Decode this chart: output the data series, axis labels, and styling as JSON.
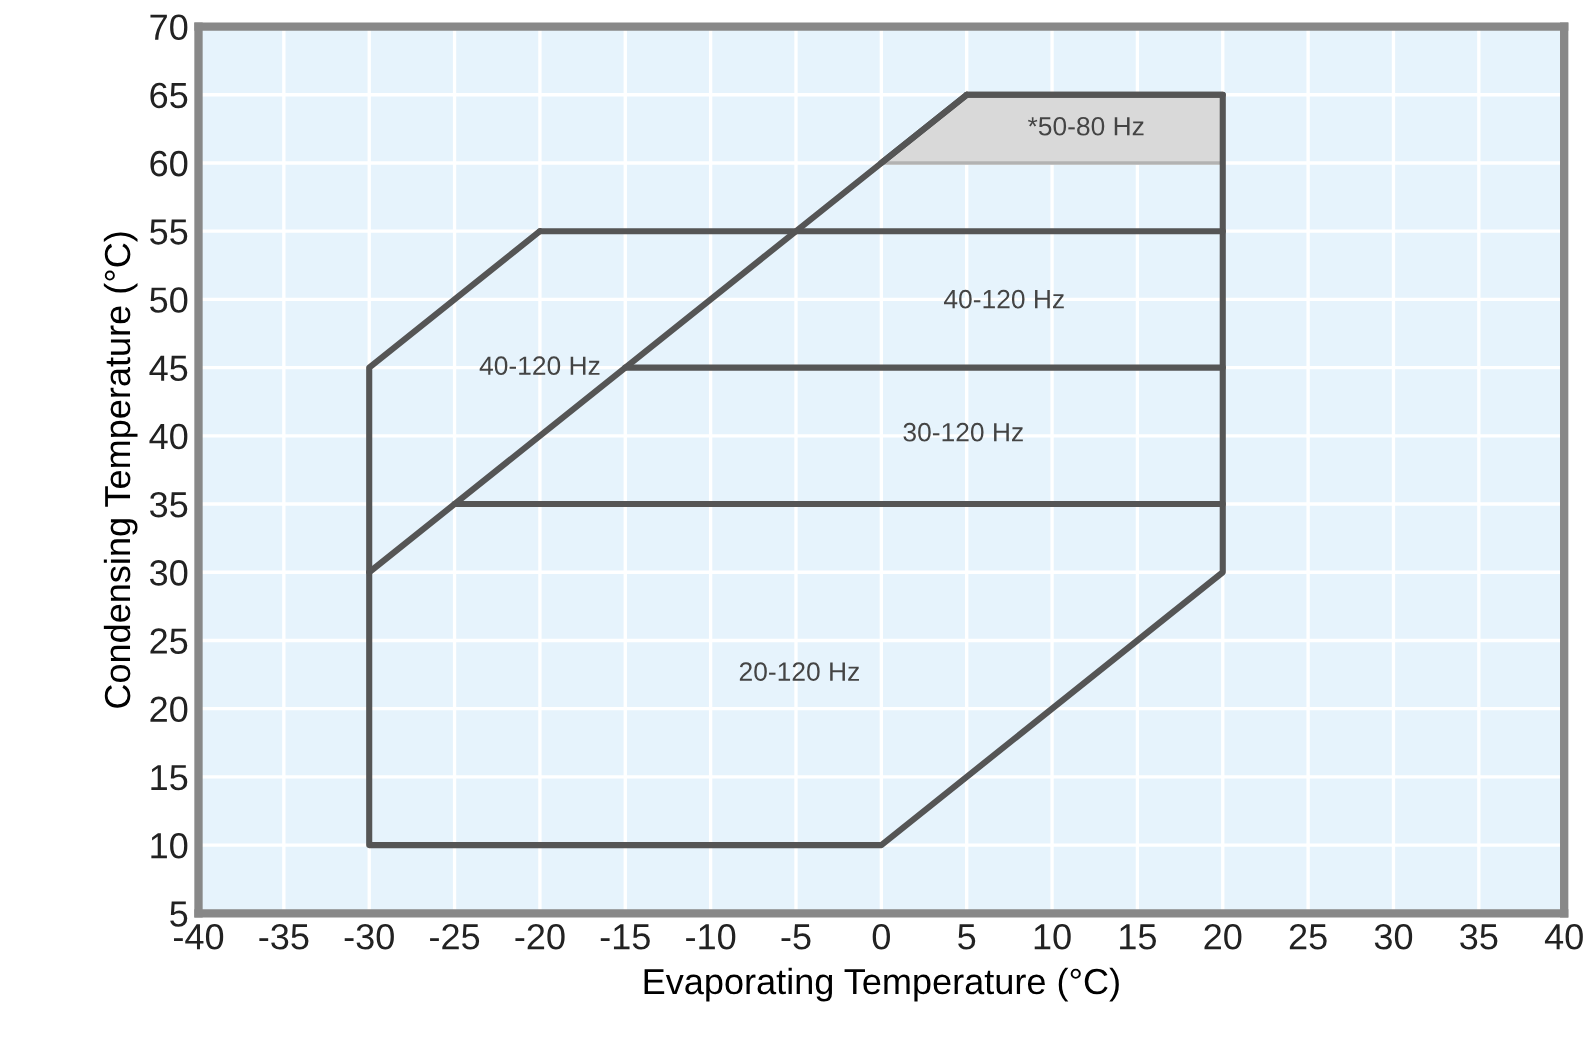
{
  "chart_data": {
    "type": "line",
    "xlabel": "Evaporating Temperature (°C)",
    "ylabel": "Condensing Temperature (°C)",
    "xlim": [
      -40,
      40
    ],
    "ylim": [
      5,
      70
    ],
    "xticks": [
      -40,
      -35,
      -30,
      -25,
      -20,
      -15,
      -10,
      -5,
      0,
      5,
      10,
      15,
      20,
      25,
      30,
      35,
      40
    ],
    "yticks": [
      5,
      10,
      15,
      20,
      25,
      30,
      35,
      40,
      45,
      50,
      55,
      60,
      65,
      70
    ],
    "grid": true,
    "marker": "none",
    "line_style": "solid",
    "series": [
      {
        "color": "#555555",
        "x": [
          0,
          5,
          20
        ],
        "values": [
          60,
          65,
          65
        ],
        "lower": [
          60,
          60,
          60
        ],
        "upper": [
          60,
          65,
          65
        ]
      },
      {
        "color": "#555555",
        "x": [
          -20,
          -30,
          -30,
          0,
          20,
          20,
          5
        ],
        "values": [
          55,
          45,
          10,
          10,
          30,
          65,
          65
        ]
      },
      {
        "color": "#555555",
        "x": [
          -30,
          5
        ],
        "values": [
          30,
          65
        ]
      },
      {
        "color": "#555555",
        "x": [
          -20,
          20
        ],
        "values": [
          55,
          55
        ]
      },
      {
        "color": "#555555",
        "x": [
          -15,
          20
        ],
        "values": [
          45,
          45
        ]
      },
      {
        "color": "#555555",
        "x": [
          -25,
          20
        ],
        "values": [
          35,
          35
        ]
      }
    ],
    "annotations": [
      "*50-80 Hz",
      "40-120 Hz",
      "40-120 Hz",
      "30-120 Hz",
      "20-120 Hz"
    ]
  }
}
